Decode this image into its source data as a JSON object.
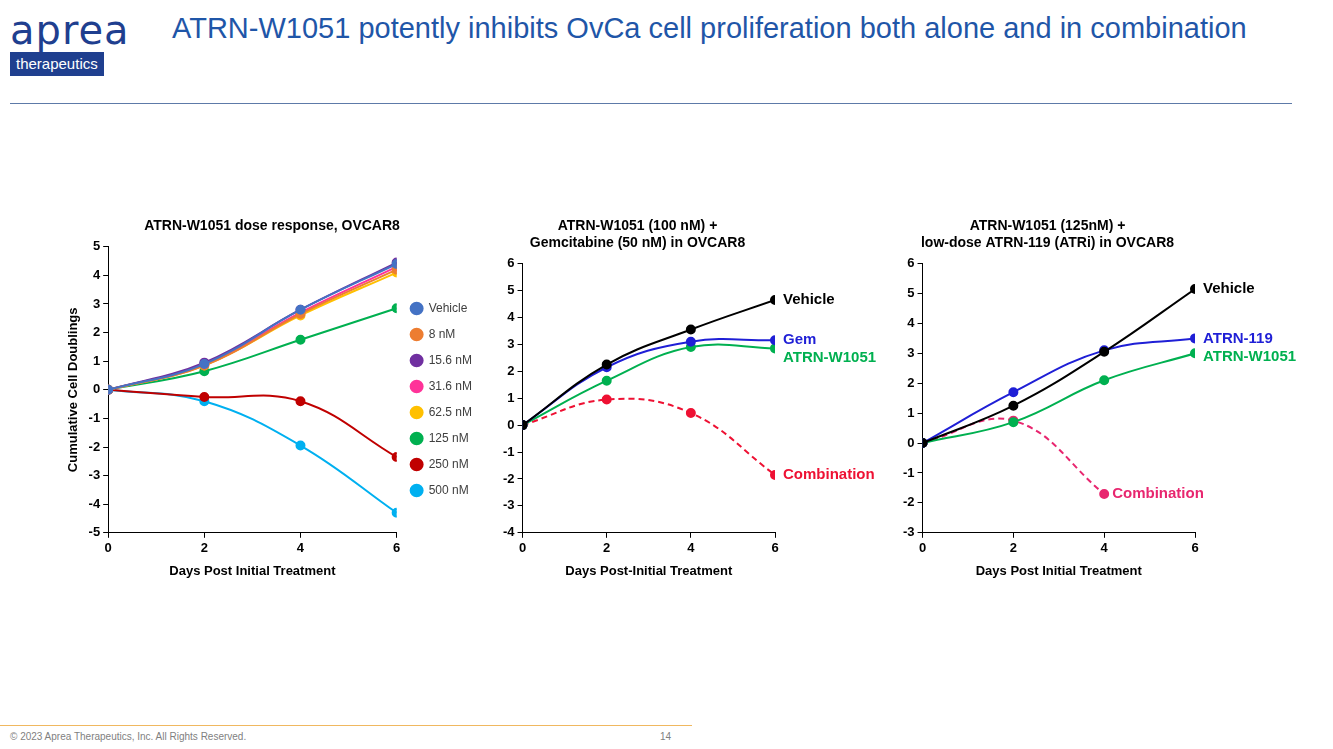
{
  "slide": {
    "logo": {
      "name": "aprea",
      "tagline": "therapeutics"
    },
    "title": "ATRN-W1051 potently inhibits OvCa cell proliferation both alone and in combination",
    "footer": "© 2023 Aprea Therapeutics, Inc. All Rights Reserved.",
    "page": "14"
  },
  "chart_data": [
    {
      "type": "line",
      "title": "ATRN-W1051 dose response, OVCAR8",
      "x_label": "Days Post Initial Treatment",
      "y_label": "Cumulative Cell Doublings",
      "x": [
        0,
        2,
        4,
        6
      ],
      "xlim": [
        0,
        6
      ],
      "xticks": [
        0,
        2,
        4,
        6
      ],
      "ylim": [
        -5,
        5
      ],
      "yticks": [
        -5,
        -4,
        -3,
        -2,
        -1,
        0,
        1,
        2,
        3,
        4,
        5
      ],
      "grid": false,
      "legend": "right",
      "series": [
        {
          "name": "Vehicle",
          "color": "#4472c4",
          "marker": "circle",
          "line_style": "solid",
          "values": [
            0,
            0.9,
            2.8,
            4.4
          ]
        },
        {
          "name": "8 nM",
          "color": "#ed7d31",
          "marker": "circle",
          "line_style": "solid",
          "values": [
            0,
            0.85,
            2.65,
            4.2
          ]
        },
        {
          "name": "15.6 nM",
          "color": "#7030a0",
          "marker": "circle",
          "line_style": "solid",
          "values": [
            0,
            0.95,
            2.8,
            4.45
          ]
        },
        {
          "name": "31.6 nM",
          "color": "#ff3399",
          "marker": "circle",
          "line_style": "solid",
          "values": [
            0,
            0.9,
            2.7,
            4.3
          ]
        },
        {
          "name": "62.5 nM",
          "color": "#ffc000",
          "marker": "circle",
          "line_style": "solid",
          "values": [
            0,
            0.85,
            2.6,
            4.1
          ]
        },
        {
          "name": "125 nM",
          "color": "#00b050",
          "marker": "circle",
          "line_style": "solid",
          "values": [
            0,
            0.65,
            1.75,
            2.85
          ]
        },
        {
          "name": "250 nM",
          "color": "#c00000",
          "marker": "circle",
          "line_style": "solid",
          "values": [
            0,
            -0.25,
            -0.4,
            -2.35
          ]
        },
        {
          "name": "500 nM",
          "color": "#00b0f0",
          "marker": "circle",
          "line_style": "solid",
          "values": [
            0,
            -0.4,
            -1.95,
            -4.3
          ]
        }
      ]
    },
    {
      "type": "line",
      "title": "ATRN-W1051 (100 nM) + Gemcitabine (50 nM) in OVCAR8",
      "x_label": "Days Post-Initial Treatment",
      "x": [
        0,
        2,
        4,
        6
      ],
      "xlim": [
        0,
        6
      ],
      "xticks": [
        0,
        2,
        4,
        6
      ],
      "ylim": [
        -4,
        6
      ],
      "yticks": [
        -4,
        -3,
        -2,
        -1,
        0,
        1,
        2,
        3,
        4,
        5,
        6
      ],
      "grid": false,
      "series": [
        {
          "name": "Vehicle",
          "color": "#000000",
          "marker": "circle",
          "line_style": "solid",
          "values": [
            0,
            2.25,
            3.55,
            4.65
          ]
        },
        {
          "name": "Gem",
          "color": "#1f1fd6",
          "marker": "circle",
          "line_style": "solid",
          "values": [
            0,
            2.15,
            3.1,
            3.15
          ]
        },
        {
          "name": "ATRN-W1051",
          "color": "#00b050",
          "marker": "circle",
          "line_style": "solid",
          "values": [
            0,
            1.65,
            2.9,
            2.85
          ]
        },
        {
          "name": "Combination",
          "color": "#ee1133",
          "marker": "circle",
          "line_style": "dashed",
          "values": [
            0,
            0.95,
            0.45,
            -1.85
          ]
        }
      ]
    },
    {
      "type": "line",
      "title": "ATRN-W1051 (125nM) + low-dose ATRN-119 (ATRi) in OVCAR8",
      "x_label": "Days Post Initial Treatment",
      "x": [
        0,
        2,
        4,
        6
      ],
      "xlim": [
        0,
        6
      ],
      "xticks": [
        0,
        2,
        4,
        6
      ],
      "ylim": [
        -3,
        6
      ],
      "yticks": [
        -3,
        -2,
        -1,
        0,
        1,
        2,
        3,
        4,
        5,
        6
      ],
      "grid": false,
      "series": [
        {
          "name": "Vehicle",
          "color": "#000000",
          "marker": "circle",
          "line_style": "solid",
          "values": [
            0,
            1.25,
            3.05,
            5.15
          ]
        },
        {
          "name": "ATRN-119",
          "color": "#1f1fd6",
          "marker": "circle",
          "line_style": "solid",
          "values": [
            0,
            1.7,
            3.1,
            3.5
          ]
        },
        {
          "name": "ATRN-W1051",
          "color": "#00b050",
          "marker": "circle",
          "line_style": "solid",
          "values": [
            0,
            0.7,
            2.1,
            3.0
          ]
        },
        {
          "name": "Combination",
          "color": "#e8266f",
          "marker": "circle",
          "line_style": "dashed",
          "values": [
            0,
            0.75,
            -1.7,
            null
          ]
        }
      ]
    }
  ]
}
